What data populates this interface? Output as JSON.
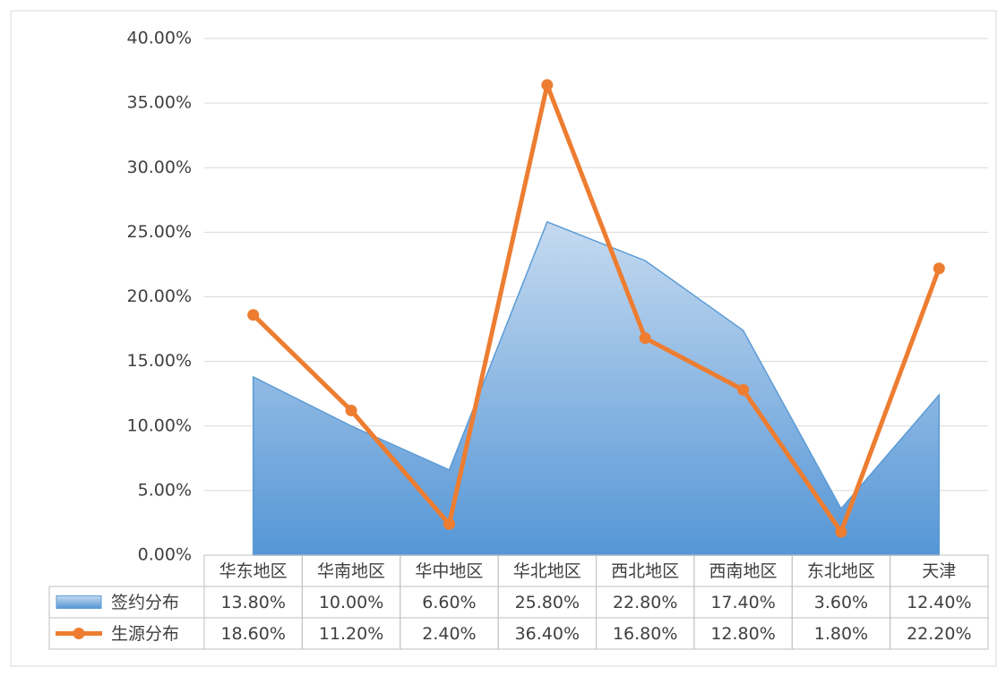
{
  "chart_data": {
    "type": "combo",
    "categories": [
      "华东地区",
      "华南地区",
      "华中地区",
      "华北地区",
      "西北地区",
      "西南地区",
      "东北地区",
      "天津"
    ],
    "series": [
      {
        "name": "签约分布",
        "type": "area",
        "color": "#5b9bd5",
        "values": [
          13.8,
          10.0,
          6.6,
          25.8,
          22.8,
          17.4,
          3.6,
          12.4
        ],
        "value_labels": [
          "13.80%",
          "10.00%",
          "6.60%",
          "25.80%",
          "22.80%",
          "17.40%",
          "3.60%",
          "12.40%"
        ]
      },
      {
        "name": "生源分布",
        "type": "line",
        "color": "#ed7d31",
        "values": [
          18.6,
          11.2,
          2.4,
          36.4,
          16.8,
          12.8,
          1.8,
          22.2
        ],
        "value_labels": [
          "18.60%",
          "11.20%",
          "2.40%",
          "36.40%",
          "16.80%",
          "12.80%",
          "1.80%",
          "22.20%"
        ]
      }
    ],
    "ylim": [
      0,
      40
    ],
    "yticks": [
      {
        "value": 0,
        "label": "0.00%"
      },
      {
        "value": 5,
        "label": "5.00%"
      },
      {
        "value": 10,
        "label": "10.00%"
      },
      {
        "value": 15,
        "label": "15.00%"
      },
      {
        "value": 20,
        "label": "20.00%"
      },
      {
        "value": 25,
        "label": "25.00%"
      },
      {
        "value": 30,
        "label": "30.00%"
      },
      {
        "value": 35,
        "label": "35.00%"
      },
      {
        "value": 40,
        "label": "40.00%"
      }
    ],
    "grid": true
  }
}
